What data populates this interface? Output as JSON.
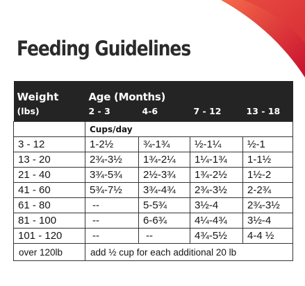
{
  "title": "Feeding Guidelines",
  "colors": {
    "header_bg": "#242424",
    "header_text": "#ffffff",
    "swoosh_dark": "#c8102e",
    "swoosh_light": "#f56a4a",
    "title_text": "#2b2b2b"
  },
  "table": {
    "header": {
      "weight": "Weight",
      "weight_unit": "(lbs)",
      "age": "Age (Months)",
      "age_ranges": [
        "2 - 3",
        "4-6",
        "7 - 12",
        "13 - 18"
      ]
    },
    "units_label": "Cups/day",
    "rows": [
      {
        "weight": "3 - 12",
        "values": [
          "1-2½",
          "¾-1¾",
          "½-1¼",
          "½-1"
        ]
      },
      {
        "weight": "13 - 20",
        "values": [
          "2¾-3½",
          "1¾-2¼",
          "1¼-1¾",
          "1-1½"
        ]
      },
      {
        "weight": "21 - 40",
        "values": [
          "3¾-5¾",
          "2½-3¾",
          "1¾-2½",
          "1½-2"
        ]
      },
      {
        "weight": "41 - 60",
        "values": [
          "5¾-7½",
          "3¾-4¾",
          "2¾-3½",
          "2-2¾"
        ]
      },
      {
        "weight": "61 - 80",
        "values": [
          "--",
          "5-5¾",
          "3½-4",
          "2¾-3½"
        ]
      },
      {
        "weight": "81 - 100",
        "values": [
          "--",
          "6-6¾",
          "4¼-4¾",
          "3½-4"
        ]
      },
      {
        "weight": "101 - 120",
        "values": [
          "--",
          "--",
          "4¾-5½",
          "4-4 ½"
        ]
      }
    ],
    "footer": {
      "weight": "over 120lb",
      "note": "add ½ cup for each additional 20 lb"
    }
  }
}
